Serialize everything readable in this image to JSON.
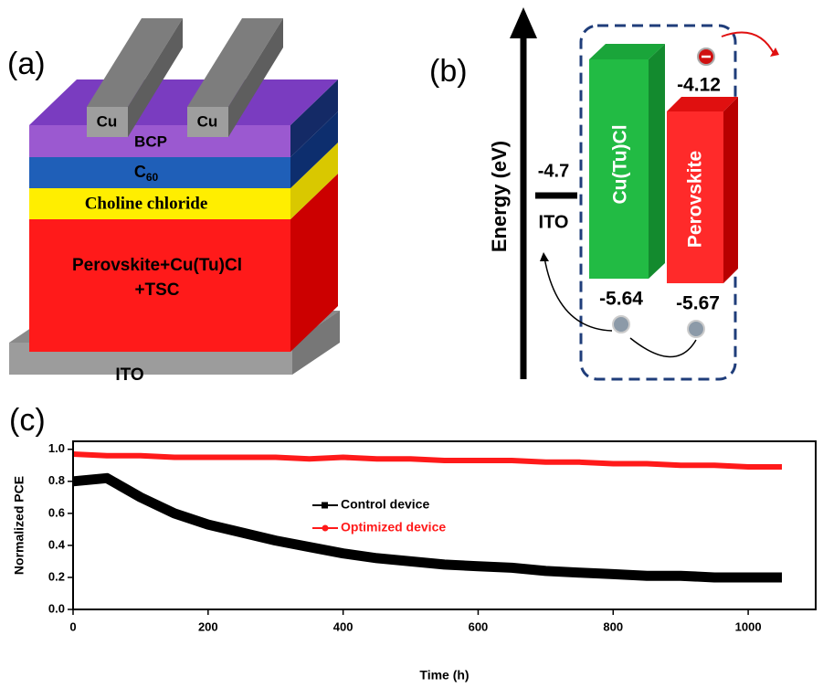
{
  "panel_a": {
    "label": "(a)",
    "electrodes": [
      "Cu",
      "Cu"
    ],
    "bcp": "BCP",
    "c60": "C",
    "c60_sub": "60",
    "choline": "Choline chloride",
    "perovskite_1": "Perovskite+Cu(Tu)Cl",
    "perovskite_2": "+TSC",
    "ito": "ITO"
  },
  "panel_b": {
    "label": "(b)",
    "axis": "Energy (eV)",
    "ito_level": "-4.7",
    "ito": "ITO",
    "cutucl": "Cu(Tu)Cl",
    "perovskite": "Perovskite",
    "lumo": "-4.12",
    "homo_cutucl": "-5.64",
    "homo_perovskite": "-5.67"
  },
  "chart_data": {
    "type": "line",
    "label": "(c)",
    "xlabel": "Time (h)",
    "ylabel": "Normalized PCE",
    "x": [
      0,
      50,
      100,
      150,
      200,
      250,
      300,
      350,
      400,
      450,
      500,
      550,
      600,
      650,
      700,
      750,
      800,
      850,
      900,
      950,
      1000,
      1050
    ],
    "series": [
      {
        "name": "Control device",
        "color": "#000000",
        "values": [
          0.8,
          0.82,
          0.7,
          0.6,
          0.53,
          0.48,
          0.43,
          0.39,
          0.35,
          0.32,
          0.3,
          0.28,
          0.27,
          0.26,
          0.24,
          0.23,
          0.22,
          0.21,
          0.21,
          0.2,
          0.2,
          0.2
        ]
      },
      {
        "name": "Optimized device",
        "color": "#ff1a1a",
        "values": [
          0.97,
          0.96,
          0.96,
          0.95,
          0.95,
          0.95,
          0.95,
          0.94,
          0.95,
          0.94,
          0.94,
          0.93,
          0.93,
          0.93,
          0.92,
          0.92,
          0.91,
          0.91,
          0.9,
          0.9,
          0.89,
          0.89
        ]
      }
    ],
    "xlim": [
      0,
      1100
    ],
    "xticks": [
      0,
      200,
      400,
      600,
      800,
      1000
    ],
    "ylim": [
      0,
      1.05
    ],
    "yticks": [
      {
        "value": 0,
        "label": "0.0"
      },
      0.2,
      0.4,
      0.6,
      0.8,
      {
        "value": 1,
        "label": "1.0"
      }
    ]
  }
}
